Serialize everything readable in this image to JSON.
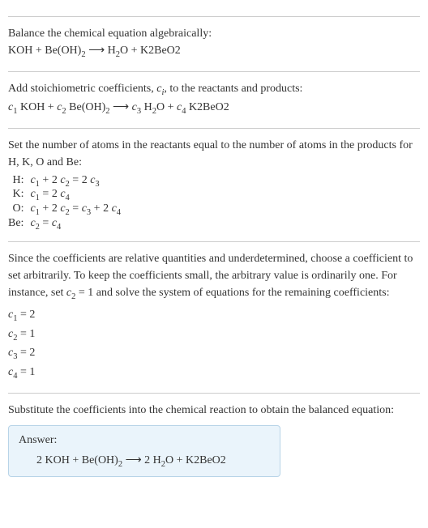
{
  "section1": {
    "intro": "Balance the chemical equation algebraically:",
    "eq_parts": [
      "KOH + Be(OH)",
      "2",
      "  ⟶  H",
      "2",
      "O + K2BeO2"
    ]
  },
  "section2": {
    "intro_parts": [
      "Add stoichiometric coefficients, ",
      "c",
      "i",
      ", to the reactants and products:"
    ],
    "eq_parts": [
      "c",
      "1",
      " KOH + ",
      "c",
      "2",
      " Be(OH)",
      "2",
      "  ⟶  ",
      "c",
      "3",
      " H",
      "2",
      "O + ",
      "c",
      "4",
      " K2BeO2"
    ]
  },
  "section3": {
    "intro": "Set the number of atoms in the reactants equal to the number of atoms in the products for H, K, O and Be:",
    "rows": [
      {
        "label": "H:",
        "parts": [
          "c",
          "1",
          " + 2 ",
          "c",
          "2",
          " = 2 ",
          "c",
          "3"
        ]
      },
      {
        "label": "K:",
        "parts": [
          "c",
          "1",
          " = 2 ",
          "c",
          "4"
        ]
      },
      {
        "label": "O:",
        "parts": [
          "c",
          "1",
          " + 2 ",
          "c",
          "2",
          " = ",
          "c",
          "3",
          " + 2 ",
          "c",
          "4"
        ]
      },
      {
        "label": "Be:",
        "parts": [
          "c",
          "2",
          " = ",
          "c",
          "4"
        ]
      }
    ]
  },
  "section4": {
    "intro_parts": [
      "Since the coefficients are relative quantities and underdetermined, choose a coefficient to set arbitrarily. To keep the coefficients small, the arbitrary value is ordinarily one. For instance, set ",
      "c",
      "2",
      " = 1 and solve the system of equations for the remaining coefficients:"
    ],
    "coefs": [
      [
        "c",
        "1",
        " = 2"
      ],
      [
        "c",
        "2",
        " = 1"
      ],
      [
        "c",
        "3",
        " = 2"
      ],
      [
        "c",
        "4",
        " = 1"
      ]
    ]
  },
  "section5": {
    "intro": "Substitute the coefficients into the chemical reaction to obtain the balanced equation:",
    "answer_label": "Answer:",
    "answer_parts": [
      "2 KOH + Be(OH)",
      "2",
      "  ⟶  2 H",
      "2",
      "O + K2BeO2"
    ]
  }
}
